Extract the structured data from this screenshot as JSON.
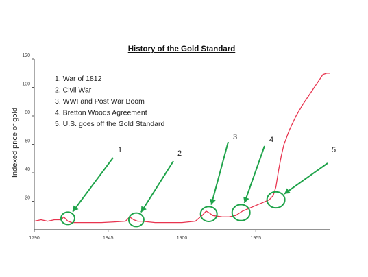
{
  "chart_data": {
    "type": "line",
    "title": "History of the Gold Standard",
    "xlabel": "",
    "ylabel": "Indexed price of gold",
    "xlim": [
      1790,
      2010
    ],
    "ylim": [
      0,
      120
    ],
    "x_ticks": [
      1790,
      1845,
      1900,
      1955
    ],
    "y_ticks": [
      20,
      40,
      60,
      80,
      100,
      120
    ],
    "grid": false,
    "line_color": "#e8344f",
    "annotation_color": "#1fa34a",
    "series": [
      {
        "x": [
          1790,
          1795,
          1800,
          1805,
          1810,
          1812,
          1815,
          1818,
          1822,
          1830,
          1840,
          1850,
          1858,
          1861,
          1864,
          1867,
          1870,
          1880,
          1890,
          1900,
          1910,
          1915,
          1918,
          1920,
          1923,
          1930,
          1935,
          1940,
          1945,
          1950,
          1955,
          1960,
          1965,
          1968,
          1970,
          1972,
          1974,
          1976,
          1980,
          1985,
          1990,
          1995,
          2000,
          2005,
          2008,
          2010
        ],
        "y": [
          6,
          7,
          6,
          7,
          7,
          9,
          6,
          5,
          5,
          5,
          5,
          5.5,
          6,
          9,
          7,
          6,
          6,
          5,
          5,
          5,
          6,
          10,
          13,
          12,
          10,
          9,
          9,
          10,
          13,
          15,
          17,
          19,
          21,
          24,
          30,
          42,
          52,
          60,
          70,
          80,
          88,
          95,
          102,
          109,
          110,
          110
        ]
      }
    ],
    "legend": {
      "placement": "top-left",
      "entries": [
        "1.  War of 1812",
        "2.  Civil War",
        "3.  WWI and Post War Boom",
        "4.  Bretton Woods Agreement",
        "5.  U.S. goes off the Gold Standard"
      ]
    },
    "annotations": [
      {
        "label": "1",
        "x": 1815,
        "y": 8
      },
      {
        "label": "2",
        "x": 1866,
        "y": 7
      },
      {
        "label": "3",
        "x": 1920,
        "y": 11
      },
      {
        "label": "4",
        "x": 1944,
        "y": 12
      },
      {
        "label": "5",
        "x": 1970,
        "y": 21
      }
    ]
  }
}
